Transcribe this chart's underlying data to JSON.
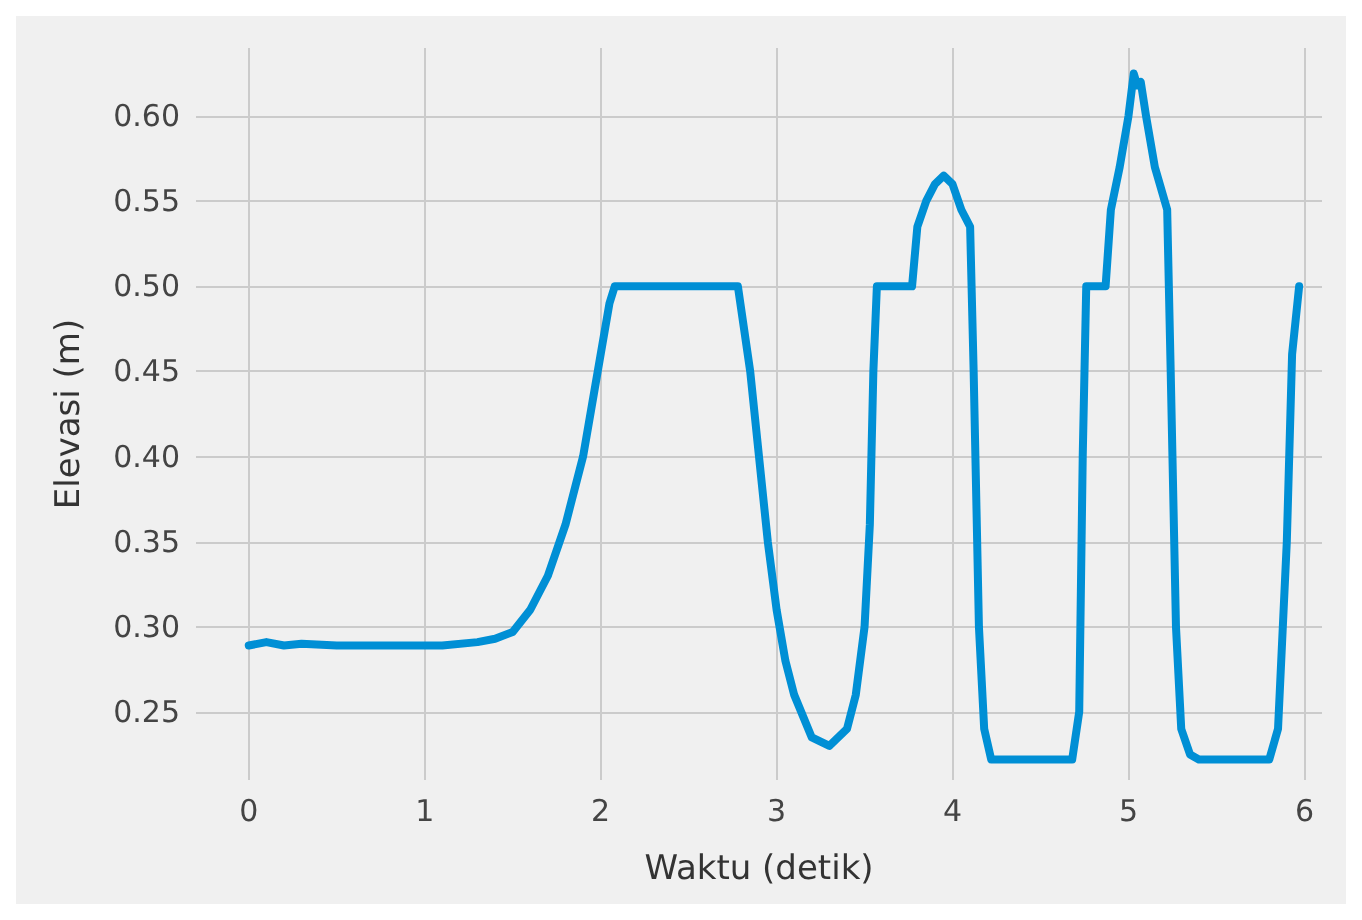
{
  "chart_data": {
    "type": "line",
    "xlabel": "Waktu (detik)",
    "ylabel": "Elevasi (m)",
    "series": [
      {
        "color": "#008fd5",
        "x": [
          0,
          0.1,
          0.2,
          0.3,
          0.5,
          0.7,
          0.9,
          1.1,
          1.3,
          1.4,
          1.5,
          1.6,
          1.7,
          1.8,
          1.9,
          1.95,
          2.0,
          2.05,
          2.08,
          2.78,
          2.85,
          2.9,
          2.95,
          3.0,
          3.05,
          3.1,
          3.2,
          3.3,
          3.4,
          3.45,
          3.5,
          3.53,
          3.55,
          3.57,
          3.77,
          3.8,
          3.85,
          3.9,
          3.95,
          4.0,
          4.05,
          4.1,
          4.12,
          4.15,
          4.18,
          4.22,
          4.68,
          4.72,
          4.74,
          4.76,
          4.87,
          4.9,
          4.95,
          5.0,
          5.03,
          5.05,
          5.07,
          5.1,
          5.15,
          5.22,
          5.24,
          5.27,
          5.3,
          5.35,
          5.4,
          5.8,
          5.85,
          5.9,
          5.93,
          5.97
        ],
        "values": [
          0.289,
          0.291,
          0.289,
          0.29,
          0.289,
          0.289,
          0.289,
          0.289,
          0.291,
          0.293,
          0.297,
          0.31,
          0.33,
          0.36,
          0.4,
          0.43,
          0.46,
          0.49,
          0.5,
          0.5,
          0.45,
          0.4,
          0.35,
          0.31,
          0.28,
          0.26,
          0.235,
          0.23,
          0.24,
          0.26,
          0.3,
          0.36,
          0.45,
          0.5,
          0.5,
          0.535,
          0.55,
          0.56,
          0.565,
          0.56,
          0.545,
          0.535,
          0.45,
          0.3,
          0.24,
          0.222,
          0.222,
          0.25,
          0.4,
          0.5,
          0.5,
          0.545,
          0.57,
          0.6,
          0.625,
          0.618,
          0.62,
          0.6,
          0.57,
          0.545,
          0.45,
          0.3,
          0.24,
          0.225,
          0.222,
          0.222,
          0.24,
          0.35,
          0.46,
          0.5
        ]
      }
    ],
    "xlim": [
      -0.3,
      6.1
    ],
    "xticks": [
      0,
      1,
      2,
      3,
      4,
      5,
      6
    ],
    "ylim": [
      0.21,
      0.64
    ],
    "yticks": [
      {
        "value": 0.25,
        "label": "0.25"
      },
      {
        "value": 0.3,
        "label": "0.30"
      },
      0.35,
      {
        "value": 0.4,
        "label": "0.40"
      },
      0.45,
      {
        "value": 0.5,
        "label": "0.50"
      },
      0.55,
      {
        "value": 0.6,
        "label": "0.60"
      }
    ],
    "grid": true,
    "marker": "none",
    "line_style": "solid"
  }
}
